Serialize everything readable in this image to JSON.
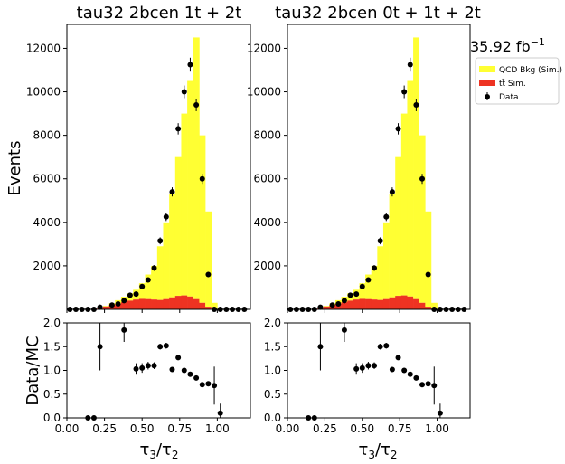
{
  "chart_data": {
    "type": "histogram",
    "lumi_label": "35.92 fb",
    "lumi_exp": "−1",
    "legend": [
      {
        "label": "QCD Bkg (Sim.)",
        "color": "#ffff33",
        "kind": "box"
      },
      {
        "label": "tt̄ Sim.",
        "color": "#ee3322",
        "kind": "box"
      },
      {
        "label": "Data",
        "color": "#000000",
        "kind": "marker"
      }
    ],
    "colors": {
      "qcd": "#ffff33",
      "ttbar": "#ee3322",
      "data": "#000000"
    },
    "xlim": [
      0,
      1.22
    ],
    "main_ylim": [
      0,
      13100
    ],
    "ratio_ylim": [
      0,
      2.0
    ],
    "xticks": [
      "0.00",
      "0.25",
      "0.50",
      "0.75",
      "1.00"
    ],
    "xtick_values": [
      0,
      0.25,
      0.5,
      0.75,
      1.0
    ],
    "main_yticks": [
      "2000",
      "4000",
      "6000",
      "8000",
      "10000",
      "12000"
    ],
    "main_ytick_values": [
      2000,
      4000,
      6000,
      8000,
      10000,
      12000
    ],
    "ratio_yticks": [
      "0.0",
      "0.5",
      "1.0",
      "1.5",
      "2.0"
    ],
    "ratio_ytick_values": [
      0,
      0.5,
      1.0,
      1.5,
      2.0
    ],
    "main_ylabel": "Events",
    "ratio_ylabel": "Data/MC",
    "xlabel": "τ3/τ2",
    "bin_edges": [
      0,
      0.04,
      0.08,
      0.12,
      0.16,
      0.2,
      0.24,
      0.28,
      0.32,
      0.36,
      0.4,
      0.44,
      0.48,
      0.52,
      0.56,
      0.6,
      0.64,
      0.68,
      0.72,
      0.76,
      0.8,
      0.84,
      0.88,
      0.92,
      0.96,
      1.0,
      1.04,
      1.08,
      1.12,
      1.16,
      1.2
    ],
    "panels": [
      {
        "title": "tau32  2bcen 1t + 2t",
        "ttbar": [
          0,
          0,
          0,
          0,
          5,
          70,
          130,
          190,
          250,
          330,
          400,
          450,
          480,
          470,
          450,
          430,
          470,
          550,
          620,
          640,
          590,
          470,
          300,
          120,
          0,
          0,
          0,
          0,
          0,
          0
        ],
        "qcd_total": [
          0,
          0,
          0,
          0,
          5,
          80,
          160,
          280,
          420,
          580,
          740,
          900,
          1200,
          1600,
          2000,
          2900,
          4000,
          5300,
          7000,
          9000,
          10500,
          12500,
          8000,
          4500,
          300,
          0,
          0,
          0,
          0,
          0
        ],
        "data_x": [
          0.02,
          0.06,
          0.1,
          0.14,
          0.18,
          0.22,
          0.3,
          0.34,
          0.38,
          0.42,
          0.46,
          0.5,
          0.54,
          0.58,
          0.62,
          0.66,
          0.7,
          0.74,
          0.78,
          0.82,
          0.86,
          0.9,
          0.94,
          0.98,
          1.02,
          1.06,
          1.1,
          1.14,
          1.18
        ],
        "data_y": [
          0,
          0,
          0,
          0,
          0,
          100,
          200,
          250,
          400,
          650,
          700,
          1050,
          1350,
          1900,
          3150,
          4250,
          5400,
          8300,
          10000,
          11250,
          9400,
          6000,
          1600,
          0,
          0,
          0,
          0,
          0,
          0
        ],
        "data_err": [
          0,
          0,
          0,
          0,
          0,
          30,
          40,
          50,
          60,
          80,
          80,
          100,
          110,
          130,
          160,
          190,
          210,
          260,
          290,
          320,
          290,
          230,
          120,
          0,
          0,
          0,
          0,
          0,
          0
        ],
        "ratio_x": [
          0.14,
          0.18,
          0.22,
          0.38,
          0.46,
          0.5,
          0.54,
          0.58,
          0.62,
          0.66,
          0.7,
          0.74,
          0.78,
          0.82,
          0.86,
          0.9,
          0.94,
          0.98,
          1.02
        ],
        "ratio_y": [
          0,
          0,
          1.5,
          1.85,
          1.03,
          1.05,
          1.1,
          1.1,
          1.5,
          1.52,
          1.02,
          1.27,
          1.0,
          0.92,
          0.84,
          0.7,
          0.72,
          0.68,
          0.1
        ],
        "ratio_err": [
          0,
          0,
          0.5,
          0.25,
          0.12,
          0.1,
          0.08,
          0.07,
          0.06,
          0.06,
          0.04,
          0.04,
          0.03,
          0.03,
          0.03,
          0.03,
          0.04,
          0.4,
          0.2
        ]
      },
      {
        "title": "tau32  2bcen 0t + 1t + 2t",
        "ttbar": [
          0,
          0,
          0,
          0,
          5,
          70,
          130,
          190,
          250,
          330,
          400,
          450,
          480,
          470,
          450,
          430,
          470,
          550,
          620,
          640,
          590,
          470,
          300,
          120,
          0,
          0,
          0,
          0,
          0,
          0
        ],
        "qcd_total": [
          0,
          0,
          0,
          0,
          5,
          80,
          160,
          280,
          420,
          580,
          740,
          900,
          1200,
          1600,
          2000,
          2900,
          4000,
          5300,
          7000,
          9000,
          10500,
          12500,
          8000,
          4500,
          300,
          0,
          0,
          0,
          0,
          0
        ],
        "data_x": [
          0.02,
          0.06,
          0.1,
          0.14,
          0.18,
          0.22,
          0.3,
          0.34,
          0.38,
          0.42,
          0.46,
          0.5,
          0.54,
          0.58,
          0.62,
          0.66,
          0.7,
          0.74,
          0.78,
          0.82,
          0.86,
          0.9,
          0.94,
          0.98,
          1.02,
          1.06,
          1.1,
          1.14,
          1.18
        ],
        "data_y": [
          0,
          0,
          0,
          0,
          0,
          100,
          200,
          250,
          400,
          650,
          700,
          1050,
          1350,
          1900,
          3150,
          4250,
          5400,
          8300,
          10000,
          11250,
          9400,
          6000,
          1600,
          0,
          0,
          0,
          0,
          0,
          0
        ],
        "data_err": [
          0,
          0,
          0,
          0,
          0,
          30,
          40,
          50,
          60,
          80,
          80,
          100,
          110,
          130,
          160,
          190,
          210,
          260,
          290,
          320,
          290,
          230,
          120,
          0,
          0,
          0,
          0,
          0,
          0
        ],
        "ratio_x": [
          0.14,
          0.18,
          0.22,
          0.38,
          0.46,
          0.5,
          0.54,
          0.58,
          0.62,
          0.66,
          0.7,
          0.74,
          0.78,
          0.82,
          0.86,
          0.9,
          0.94,
          0.98,
          1.02
        ],
        "ratio_y": [
          0,
          0,
          1.5,
          1.85,
          1.03,
          1.05,
          1.1,
          1.1,
          1.5,
          1.52,
          1.02,
          1.27,
          1.0,
          0.92,
          0.84,
          0.7,
          0.72,
          0.68,
          0.1
        ],
        "ratio_err": [
          0,
          0,
          0.5,
          0.25,
          0.12,
          0.1,
          0.08,
          0.07,
          0.06,
          0.06,
          0.04,
          0.04,
          0.03,
          0.03,
          0.03,
          0.03,
          0.04,
          0.4,
          0.2
        ]
      }
    ]
  }
}
